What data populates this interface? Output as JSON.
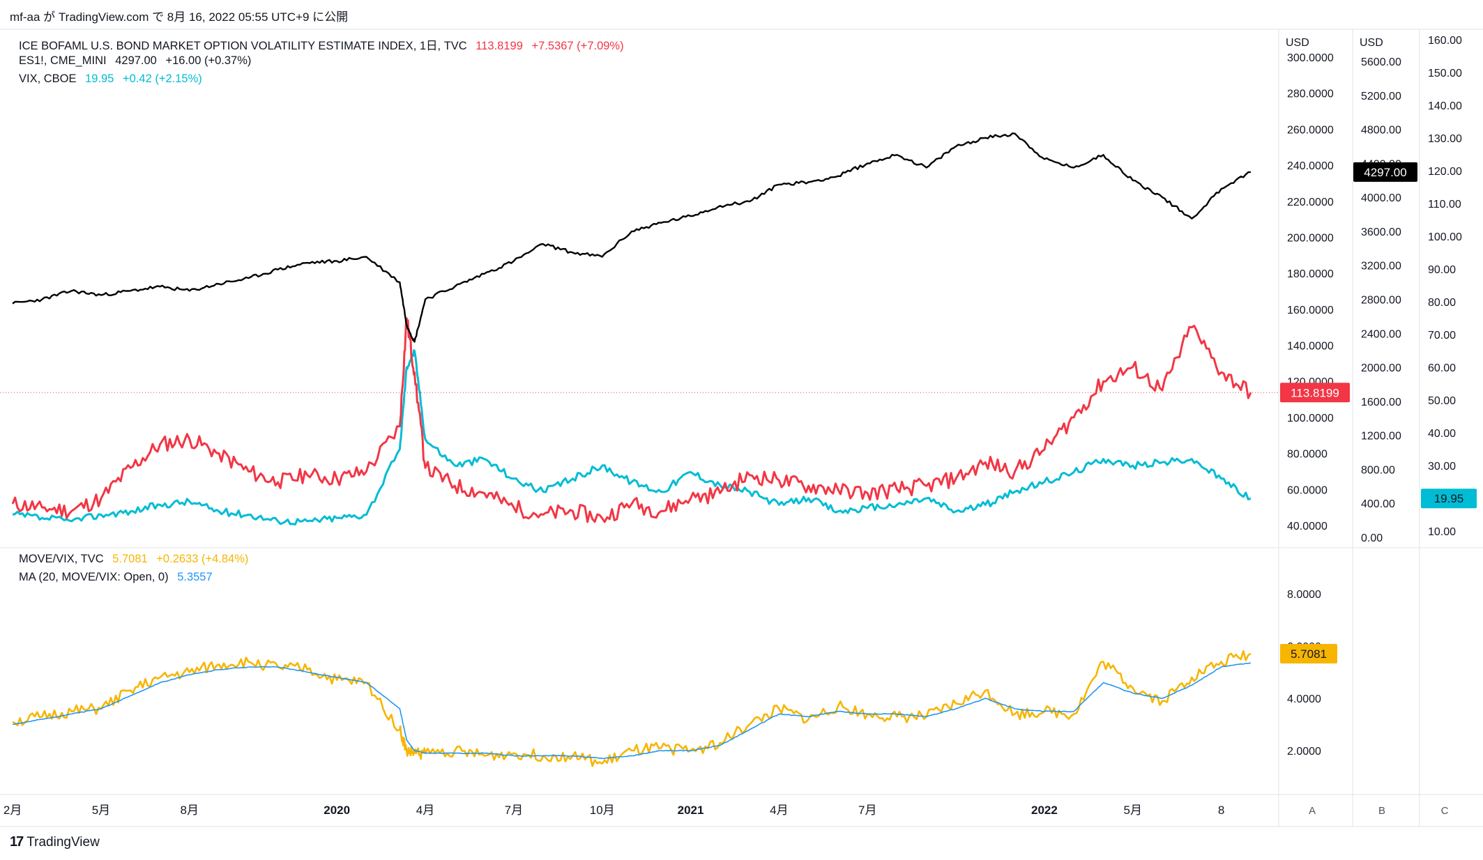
{
  "header": {
    "publish_text": "mf-aa が TradingView.com で 8月 16, 2022 05:55 UTC+9 に公開"
  },
  "legend_top": [
    {
      "name": "ICE BOFAML U.S. BOND MARKET OPTION VOLATILITY ESTIMATE INDEX, 1日, TVC",
      "value": "113.8199",
      "change": "+7.5367 (+7.09%)",
      "color": "#f23645"
    },
    {
      "name": "ES1!, CME_MINI",
      "value": "4297.00",
      "change": "+16.00 (+0.37%)",
      "color": "#131722"
    },
    {
      "name": "VIX, CBOE",
      "value": "19.95",
      "change": "+0.42 (+2.15%)",
      "color": "#00bcd4"
    }
  ],
  "legend_bottom": [
    {
      "name": "MOVE/VIX, TVC",
      "value": "5.7081",
      "change": "+0.2633 (+4.84%)",
      "color": "#f7b500"
    },
    {
      "name": "MA (20, MOVE/VIX: Open, 0)",
      "value": "5.3557",
      "change": "",
      "color": "#2196f3"
    }
  ],
  "axes": {
    "a_unit": "USD",
    "b_unit": "USD",
    "a_ticks": [
      "300.0000",
      "280.0000",
      "260.0000",
      "240.0000",
      "220.0000",
      "200.0000",
      "180.0000",
      "160.0000",
      "140.0000",
      "120.0000",
      "100.0000",
      "80.0000",
      "60.0000",
      "40.0000"
    ],
    "b_ticks": [
      "5600.00",
      "5200.00",
      "4800.00",
      "4400.00",
      "4000.00",
      "3600.00",
      "3200.00",
      "2800.00",
      "2400.00",
      "2000.00",
      "1600.00",
      "1200.00",
      "800.00",
      "400.00",
      "0.00"
    ],
    "c_ticks": [
      "160.00",
      "150.00",
      "140.00",
      "130.00",
      "120.00",
      "110.00",
      "100.00",
      "90.00",
      "80.00",
      "70.00",
      "60.00",
      "50.00",
      "40.00",
      "30.00",
      "20.00",
      "10.00"
    ],
    "ratio_ticks": [
      "8.0000",
      "6.0000",
      "4.0000",
      "2.0000"
    ],
    "x_ticks": [
      "2月",
      "5月",
      "8月",
      "2020",
      "4月",
      "7月",
      "10月",
      "2021",
      "4月",
      "7月",
      "2022",
      "5月",
      "8"
    ],
    "scale_buttons": [
      "A",
      "B",
      "C"
    ]
  },
  "badges": {
    "es_last": "4297.00",
    "move_last": "113.8199",
    "vix_last": "19.95",
    "ratio_last": "5.7081"
  },
  "colors": {
    "move": "#f23645",
    "es": "#000000",
    "vix": "#00bcd4",
    "ratio": "#f7b500",
    "ma": "#2196f3"
  },
  "chart_data": [
    {
      "type": "line",
      "title": "",
      "x": [
        "2019-02",
        "2019-03",
        "2019-04",
        "2019-05",
        "2019-06",
        "2019-07",
        "2019-08",
        "2019-09",
        "2019-10",
        "2019-11",
        "2019-12",
        "2020-01",
        "2020-02",
        "2020-03-05",
        "2020-03-12",
        "2020-03-20",
        "2020-04",
        "2020-05",
        "2020-06",
        "2020-07",
        "2020-08",
        "2020-09",
        "2020-10",
        "2020-11",
        "2020-12",
        "2021-01",
        "2021-02",
        "2021-03",
        "2021-04",
        "2021-05",
        "2021-06",
        "2021-07",
        "2021-08",
        "2021-09",
        "2021-10",
        "2021-11",
        "2021-12",
        "2022-01",
        "2022-02",
        "2022-03",
        "2022-04",
        "2022-05",
        "2022-06",
        "2022-07",
        "2022-08"
      ],
      "series": [
        {
          "name": "ICE BOFAML U.S. BOND MARKET OPTION VOLATILITY ESTIMATE INDEX, 1日, TVC",
          "axis": "A",
          "values": [
            52,
            50,
            48,
            55,
            72,
            85,
            88,
            80,
            70,
            64,
            68,
            66,
            70,
            95,
            155,
            125,
            72,
            62,
            58,
            50,
            46,
            48,
            44,
            52,
            48,
            55,
            58,
            68,
            65,
            62,
            60,
            58,
            60,
            62,
            66,
            75,
            70,
            82,
            100,
            120,
            128,
            115,
            150,
            125,
            113.8
          ]
        },
        {
          "name": "ES1!, CME_MINI",
          "axis": "B",
          "values": [
            2750,
            2800,
            2900,
            2850,
            2900,
            2950,
            2900,
            2980,
            3050,
            3150,
            3230,
            3250,
            3300,
            3000,
            2500,
            2300,
            2800,
            2950,
            3100,
            3250,
            3450,
            3350,
            3300,
            3600,
            3700,
            3780,
            3900,
            3950,
            4150,
            4180,
            4250,
            4400,
            4500,
            4350,
            4600,
            4700,
            4750,
            4450,
            4350,
            4500,
            4200,
            4000,
            3750,
            4100,
            4297
          ]
        },
        {
          "name": "VIX, CBOE",
          "axis": "C",
          "values": [
            15,
            14,
            13,
            15,
            16,
            18,
            19,
            16,
            15,
            13,
            13,
            14,
            15,
            35,
            60,
            65,
            38,
            30,
            32,
            26,
            22,
            26,
            30,
            25,
            22,
            28,
            24,
            22,
            18,
            20,
            16,
            17,
            18,
            20,
            16,
            18,
            22,
            25,
            28,
            32,
            30,
            31,
            32,
            26,
            19.95
          ]
        }
      ],
      "ylim_A": [
        40,
        300
      ],
      "ylim_B": [
        0,
        5600
      ],
      "ylim_C": [
        10,
        160
      ]
    },
    {
      "type": "line",
      "title": "",
      "x": [
        "2019-02",
        "2019-03",
        "2019-04",
        "2019-05",
        "2019-06",
        "2019-07",
        "2019-08",
        "2019-09",
        "2019-10",
        "2019-11",
        "2019-12",
        "2020-01",
        "2020-02",
        "2020-03-05",
        "2020-03-12",
        "2020-03-20",
        "2020-04",
        "2020-05",
        "2020-06",
        "2020-07",
        "2020-08",
        "2020-09",
        "2020-10",
        "2020-11",
        "2020-12",
        "2021-01",
        "2021-02",
        "2021-03",
        "2021-04",
        "2021-05",
        "2021-06",
        "2021-07",
        "2021-08",
        "2021-09",
        "2021-10",
        "2021-11",
        "2021-12",
        "2022-01",
        "2022-02",
        "2022-03",
        "2022-04",
        "2022-05",
        "2022-06",
        "2022-07",
        "2022-08"
      ],
      "series": [
        {
          "name": "MOVE/VIX, TVC",
          "values": [
            3.1,
            3.3,
            3.5,
            3.6,
            4.3,
            4.8,
            5.0,
            5.3,
            5.4,
            5.2,
            5.1,
            4.7,
            4.6,
            2.8,
            2.0,
            1.9,
            1.9,
            2.0,
            1.8,
            1.9,
            1.8,
            1.8,
            1.5,
            2.0,
            2.1,
            2.0,
            2.3,
            3.0,
            3.6,
            3.2,
            3.7,
            3.4,
            3.3,
            3.3,
            3.8,
            4.3,
            3.4,
            3.5,
            3.4,
            5.4,
            4.4,
            3.9,
            4.8,
            5.4,
            5.7081
          ]
        },
        {
          "name": "MA (20, MOVE/VIX: Open, 0)",
          "values": [
            3.0,
            3.2,
            3.4,
            3.6,
            4.1,
            4.6,
            4.9,
            5.1,
            5.2,
            5.2,
            5.0,
            4.8,
            4.6,
            3.6,
            2.4,
            2.0,
            1.9,
            1.9,
            1.9,
            1.8,
            1.8,
            1.8,
            1.7,
            1.8,
            2.0,
            2.0,
            2.2,
            2.8,
            3.4,
            3.3,
            3.5,
            3.4,
            3.4,
            3.3,
            3.6,
            4.0,
            3.6,
            3.5,
            3.5,
            4.6,
            4.2,
            4.0,
            4.5,
            5.2,
            5.3557
          ]
        }
      ],
      "ylim": [
        1,
        9
      ]
    }
  ]
}
